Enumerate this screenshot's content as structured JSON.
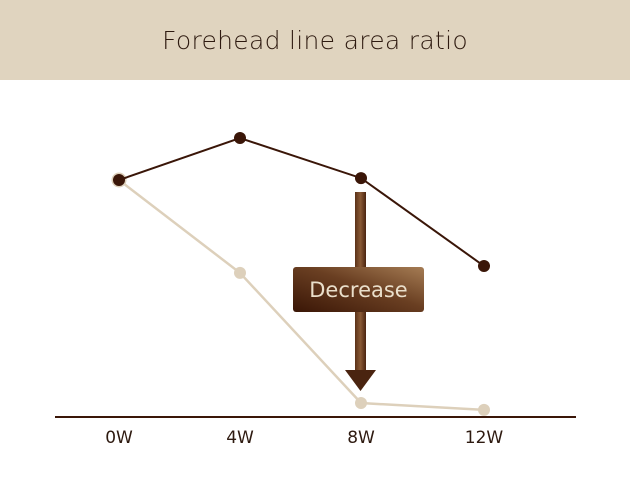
{
  "chart_data": {
    "type": "line",
    "title": "Forehead line area ratio",
    "categories": [
      "0W",
      "4W",
      "8W",
      "12W"
    ],
    "series": [
      {
        "values": [
          100,
          117.7,
          100.8,
          63.7
        ],
        "color": "#3a1608"
      },
      {
        "values": [
          100,
          60.8,
          5.9,
          3.0
        ],
        "color": "#ddd0bb"
      }
    ],
    "ylim": [
      0,
      125
    ],
    "grid": false,
    "annotation": {
      "text": "Decrease",
      "type": "down-arrow"
    },
    "colors": {
      "header_bg": "#e0d4bf",
      "axis": "#3a1608"
    }
  }
}
